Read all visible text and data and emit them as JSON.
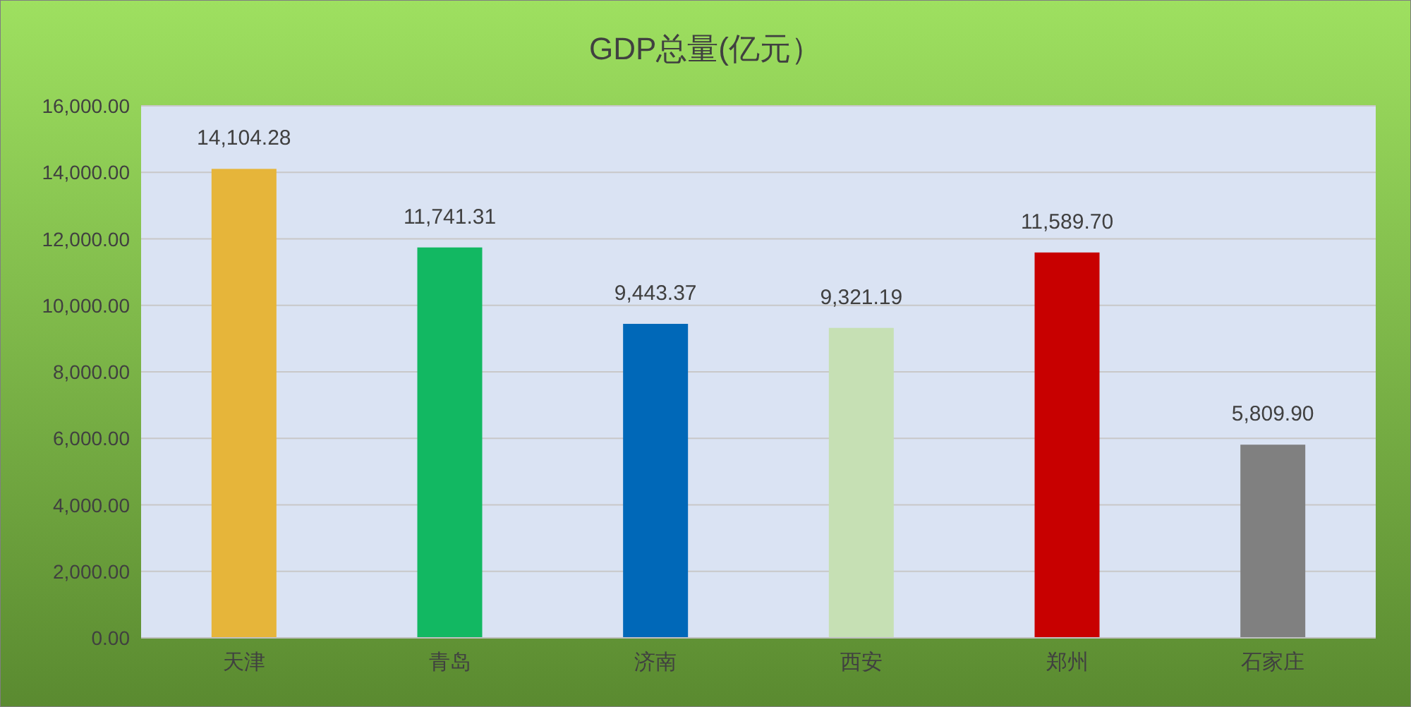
{
  "chart_data": {
    "type": "bar",
    "title": "GDP总量(亿元）",
    "categories": [
      "天津",
      "青岛",
      "济南",
      "西安",
      "郑州",
      "石家庄"
    ],
    "values": [
      14104.28,
      11741.31,
      9443.37,
      9321.19,
      11589.7,
      5809.9
    ],
    "value_labels": [
      "14,104.28",
      "11,741.31",
      "9,443.37",
      "9,321.19",
      "11,589.70",
      "5,809.90"
    ],
    "colors": [
      "#e6b53a",
      "#12b862",
      "#0068b8",
      "#c6e0b4",
      "#c80000",
      "#808080"
    ],
    "ylim": [
      0,
      16000
    ],
    "yticks": [
      {
        "value": 0,
        "label": "0.00"
      },
      {
        "value": 2000,
        "label": "2,000.00"
      },
      {
        "value": 4000,
        "label": "4,000.00"
      },
      {
        "value": 6000,
        "label": "6,000.00"
      },
      {
        "value": 8000,
        "label": "8,000.00"
      },
      {
        "value": 10000,
        "label": "10,000.00"
      },
      {
        "value": 12000,
        "label": "12,000.00"
      },
      {
        "value": 14000,
        "label": "14,000.00"
      },
      {
        "value": 16000,
        "label": "16,000.00"
      }
    ],
    "grid": "y"
  }
}
